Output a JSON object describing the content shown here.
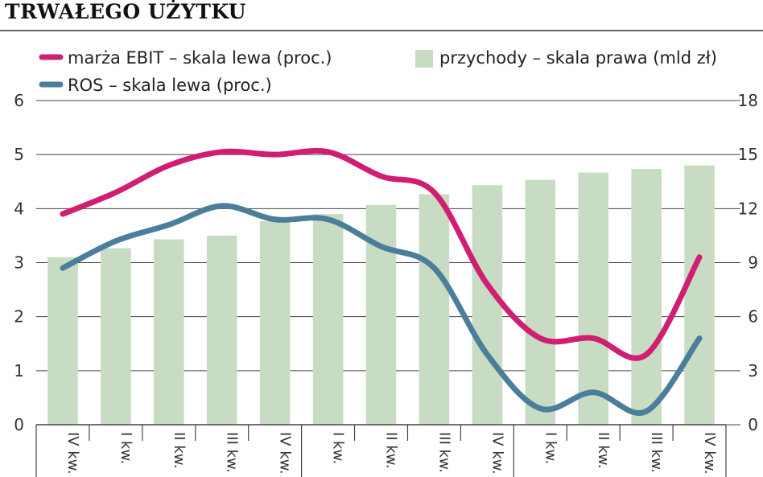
{
  "title": "TRWAŁEGO UŻYTKU",
  "chart_data": {
    "type": "bar+line",
    "categories": [
      "IV kw.",
      "I kw.",
      "II kw.",
      "III kw.",
      "IV kw.",
      "I kw.",
      "II kw.",
      "III kw.",
      "IV kw.",
      "I kw.",
      "II kw.",
      "III kw.",
      "IV kw."
    ],
    "bars": {
      "name": "przychody – skala prawa (mld zł)",
      "axis": "right",
      "color": "#c8dcc4",
      "values": [
        9.3,
        9.8,
        10.3,
        10.5,
        11.3,
        11.7,
        12.2,
        12.8,
        13.3,
        13.6,
        14.0,
        14.2,
        14.4
      ]
    },
    "series": [
      {
        "name": "marża EBIT – skala lewa (proc.)",
        "axis": "left",
        "color": "#d01f73",
        "values": [
          3.9,
          4.3,
          4.8,
          5.05,
          5.0,
          5.05,
          4.6,
          4.3,
          2.6,
          1.6,
          1.6,
          1.3,
          3.1
        ]
      },
      {
        "name": "ROS – skala lewa (proc.)",
        "axis": "left",
        "color": "#4a7e9a",
        "values": [
          2.9,
          3.4,
          3.7,
          4.05,
          3.8,
          3.8,
          3.3,
          2.9,
          1.3,
          0.3,
          0.6,
          0.25,
          1.6
        ]
      }
    ],
    "left_axis": {
      "ylim": [
        0,
        6
      ],
      "ticks": [
        "0",
        "1",
        "2",
        "3",
        "4",
        "5",
        "6"
      ]
    },
    "right_axis": {
      "ylim": [
        0,
        18
      ],
      "ticks": [
        "0",
        "3",
        "6",
        "9",
        "12",
        "15",
        "18"
      ]
    },
    "grid": true,
    "legend": "top"
  }
}
